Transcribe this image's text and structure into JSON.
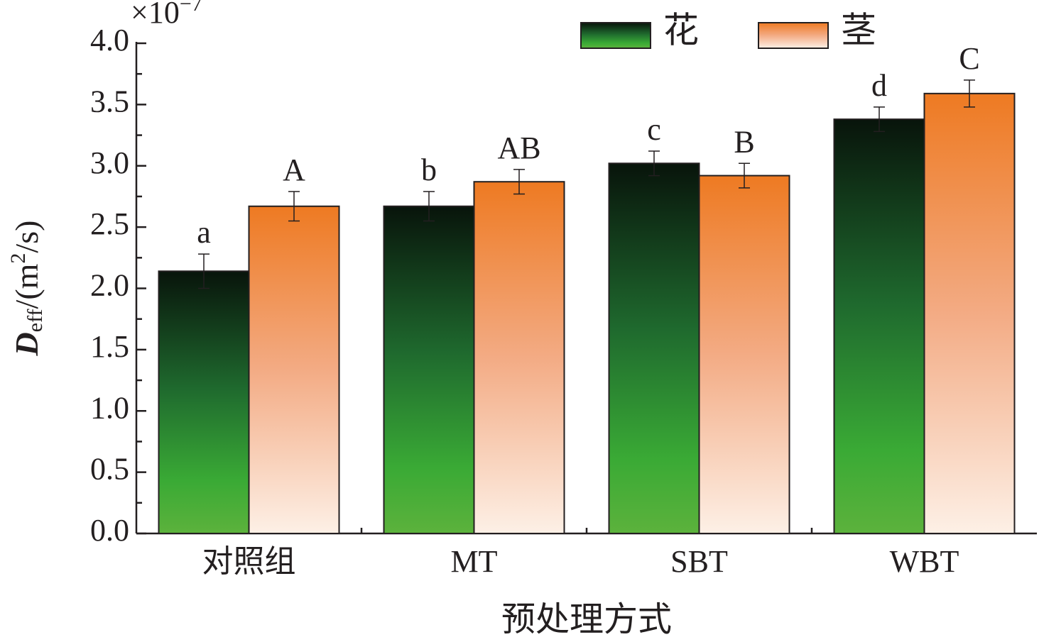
{
  "chart_data": {
    "type": "bar",
    "multiplier": {
      "base": "×10",
      "exponent": "−7"
    },
    "ylabel": {
      "symbol": "D",
      "subscript": "eff",
      "unit_start": "/(m",
      "unit_sup": "2",
      "unit_end": "/s)"
    },
    "xlabel": "预处理方式",
    "categories": [
      "对照组",
      "MT",
      "SBT",
      "WBT"
    ],
    "series": [
      {
        "name": "花",
        "color": "#3aaa35",
        "values": [
          2.14,
          2.67,
          3.02,
          3.38
        ],
        "errors": [
          0.14,
          0.12,
          0.1,
          0.1
        ],
        "letters": [
          "a",
          "b",
          "c",
          "d"
        ]
      },
      {
        "name": "茎",
        "color": "#ee7f2d",
        "values": [
          2.67,
          2.87,
          2.92,
          3.59
        ],
        "errors": [
          0.12,
          0.1,
          0.1,
          0.11
        ],
        "letters": [
          "A",
          "AB",
          "B",
          "C"
        ]
      }
    ],
    "ylim": [
      0,
      4.0
    ],
    "yticks": [
      {
        "value": 0,
        "label": "0.0"
      },
      0.5,
      {
        "value": 1,
        "label": "1.0"
      },
      1.5,
      {
        "value": 2,
        "label": "2.0"
      },
      2.5,
      {
        "value": 3,
        "label": "3.0"
      },
      3.5,
      {
        "value": 4,
        "label": "4.0"
      }
    ],
    "legend": "top-right"
  }
}
